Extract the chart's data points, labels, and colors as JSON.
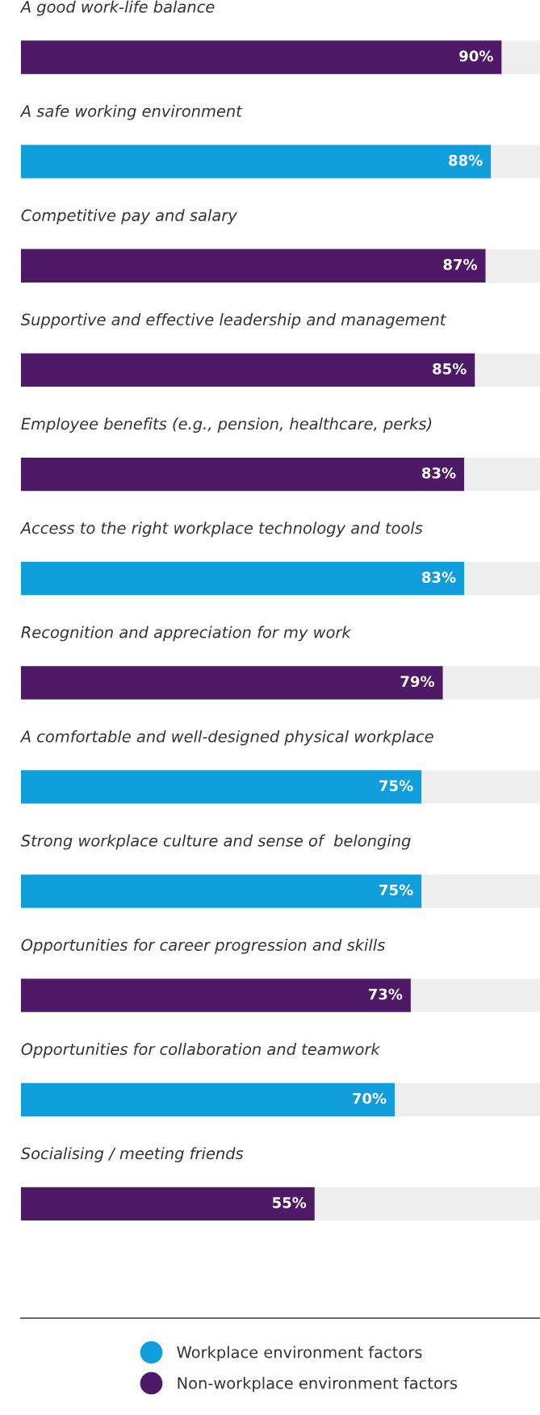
{
  "chart_data": {
    "type": "bar",
    "orientation": "horizontal",
    "legend": "bottom",
    "tick_labels": false,
    "categories": [
      "A good work-life balance",
      "A safe working environment",
      "Competitive pay and salary",
      "Supportive and effective leadership and management",
      "Employee benefits (e.g., pension, healthcare, perks)",
      "Access to the right workplace technology and tools",
      "Recognition and appreciation for my work",
      "A comfortable and well-designed physical workplace",
      "Strong workplace culture and sense of  belonging",
      "Opportunities for career progression and skills",
      "Opportunities for collaboration and teamwork",
      "Socialising / meeting friends"
    ],
    "series": [
      {
        "name": "Workplace environment factors",
        "color": "#0f9edb",
        "values": [
          null,
          88,
          null,
          null,
          null,
          83,
          null,
          75,
          75,
          null,
          70,
          null
        ],
        "value_labels": [
          null,
          "88%",
          null,
          null,
          null,
          "83%",
          null,
          "75%",
          "75%",
          null,
          "70%",
          null
        ]
      },
      {
        "name": "Non-workplace environment factors",
        "color": "#4e1a68",
        "values": [
          90,
          null,
          87,
          85,
          83,
          null,
          79,
          null,
          null,
          73,
          null,
          55
        ],
        "value_labels": [
          "90%",
          null,
          "87%",
          "85%",
          "83%",
          null,
          "79%",
          null,
          null,
          "73%",
          null,
          "55%"
        ]
      }
    ]
  }
}
